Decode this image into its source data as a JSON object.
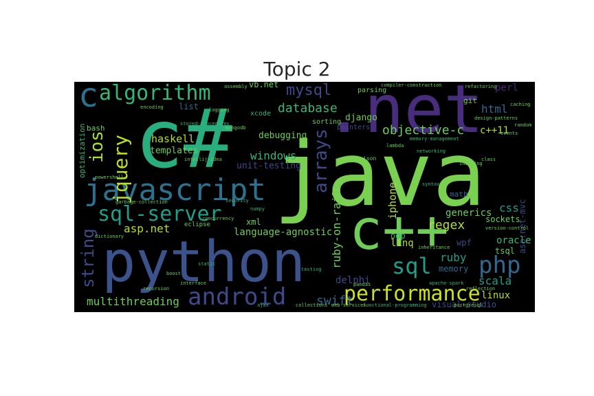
{
  "title": "Topic 2",
  "words": {
    "java": "java",
    "csharp": "c#",
    "dotnet": ".net",
    "python": "python",
    "cpp": "c++",
    "javascript": "javascript",
    "c": "c",
    "algorithm": "algorithm",
    "sql_server": "sql-server",
    "android": "android",
    "performance": "performance",
    "php": "php",
    "sql": "sql",
    "jquery": "jquery",
    "ios": "ios",
    "arrays": "arrays",
    "string": "string",
    "mysql": "mysql",
    "database": "database",
    "objective_c": "objective-c",
    "windows": "windows",
    "regex": "regex",
    "multithreading": "multithreading",
    "swift": "swift",
    "ruby": "ruby",
    "linux": "linux",
    "haskell": "haskell",
    "html": "html",
    "aspnet": "asp.net",
    "language_agnostic": "language-agnostic",
    "ruby_on_rails": "ruby-on-rails",
    "iphone": "iphone",
    "css": "css",
    "scala": "scala",
    "linq": "linq",
    "generics": "generics",
    "oracle": "oracle",
    "visual_studio": "visual-studio",
    "delphi": "delphi",
    "unit_testing": "unit-testing",
    "debugging": "debugging",
    "django": "django",
    "templates": "templates",
    "perl": "perl",
    "cpp11": "c++11",
    "vbnet": "vb.net",
    "list": "list",
    "xml": "xml",
    "oop": "oop",
    "memory": "memory",
    "wpf": "wpf",
    "sockets": "sockets",
    "tsql": "tsql",
    "aspnet_mvc": "asp.net-mvc",
    "optimization": "optimization",
    "math": "math",
    "bash": "bash",
    "git": "git",
    "parsing": "parsing",
    "xcode": "xcode",
    "sorting": "sorting",
    "pointers": "pointers",
    "eclipse": "eclipse",
    "functional_programming": "functional-programming",
    "postgresql": "postgresql",
    "design_patterns": "design-patterns",
    "refactoring": "refactoring",
    "memory_management": "memory-management",
    "compiler_construction": "compiler-construction",
    "stored_procedures": "stored-procedures",
    "intellij_idea": "intellij-idea",
    "powershell": "powershell",
    "garbage_collection": "garbage-collection",
    "concurrency": "concurrency",
    "security": "security",
    "lambda": "lambda",
    "pandas": "pandas",
    "apache_spark": "apache-spark",
    "reflection": "reflection",
    "collections": "collections",
    "ajax": "ajax",
    "web_services": "web-services",
    "encoding": "encoding",
    "logging": "logging",
    "mongodb": "mongodb",
    "json": "json",
    "dictionary": "dictionary",
    "numpy": "numpy",
    "boost": "boost",
    "static": "static",
    "inheritance": "inheritance",
    "interface": "interface",
    "version_control": "version-control",
    "caching": "caching",
    "indexing": "indexing",
    "networking": "networking",
    "class": "class",
    "events": "events",
    "random": "random",
    "syntax": "syntax",
    "recursion": "recursion",
    "testing": "testing",
    "assembly": "assembly"
  },
  "colors": {
    "background": "#000000",
    "title": "#262626",
    "green_teal": "#35b779",
    "light_green": "#6ece58",
    "yellow_green": "#b5de2b",
    "teal": "#1f9e89",
    "blue": "#3e4a89",
    "steel_blue": "#31688e",
    "purple": "#482878",
    "cyan": "#26828e"
  }
}
